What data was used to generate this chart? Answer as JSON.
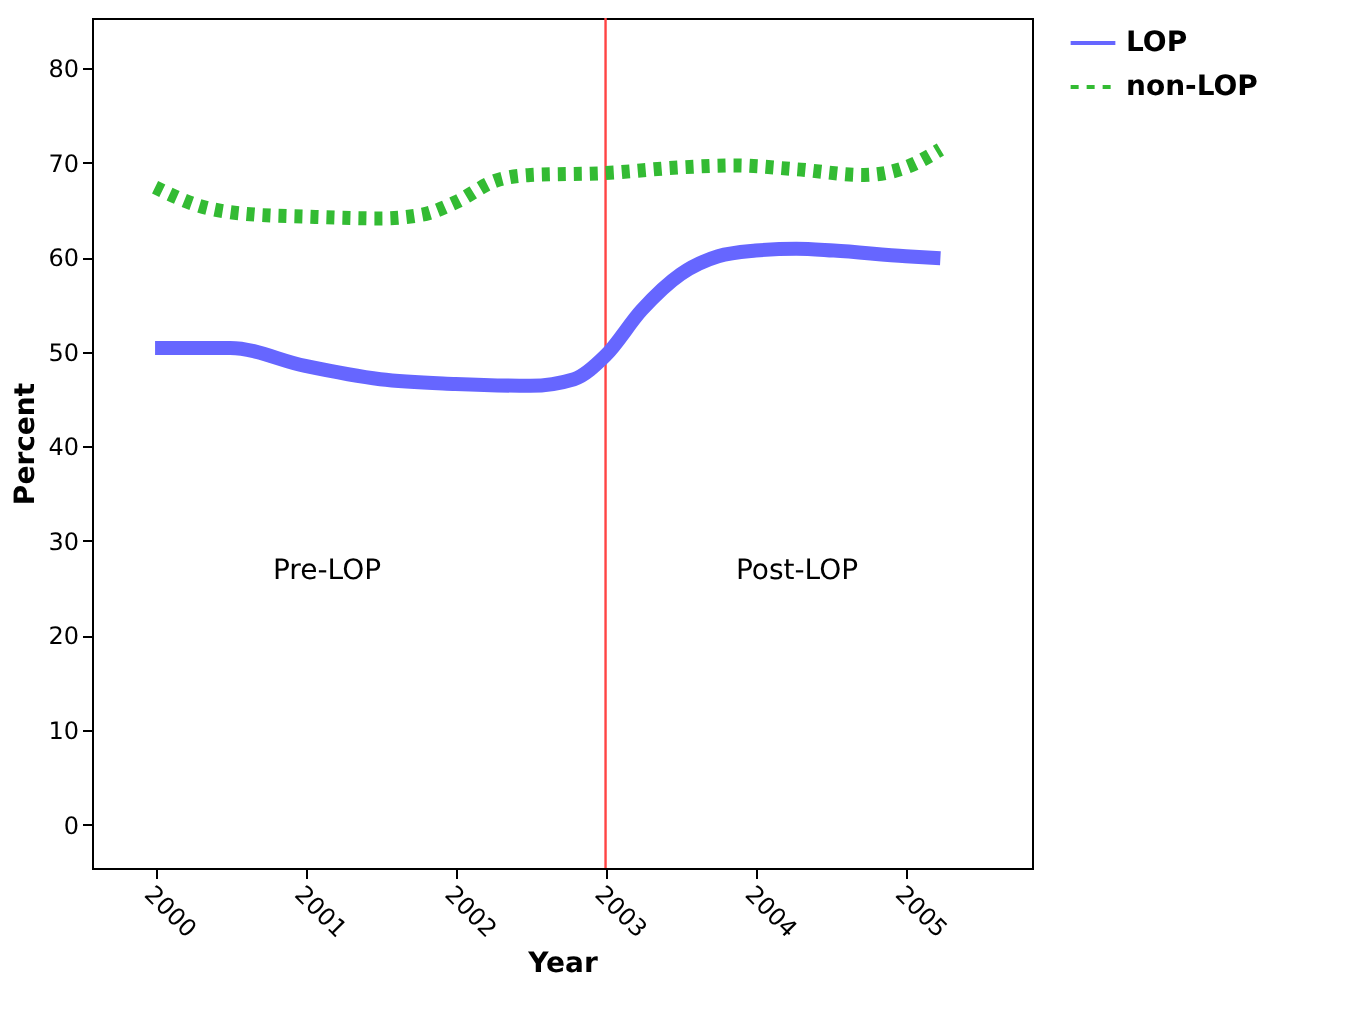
{
  "chart_data": {
    "type": "line",
    "xlabel": "Year",
    "ylabel": "Percent",
    "xlim": [
      1999.58,
      2005.84
    ],
    "xticks": [
      2000,
      2001,
      2002,
      2003,
      2004,
      2005
    ],
    "ylim": [
      -4.6,
      85.3
    ],
    "yticks": [
      0,
      10,
      20,
      30,
      40,
      50,
      60,
      70,
      80
    ],
    "grid": false,
    "legend": "top right",
    "marker": "none",
    "series": [
      {
        "name": "LOP",
        "color": "#6666ff",
        "line_style": "solid",
        "x": [
          2000,
          2000.5,
          2001,
          2001.5,
          2002,
          2002.5,
          2002.79,
          2003.0,
          2003.24,
          2003.5,
          2003.75,
          2004.0,
          2004.27,
          2004.52,
          2005,
          2005.23
        ],
        "values": [
          50.4,
          50.4,
          48.5,
          47.1,
          46.6,
          46.4,
          47.1,
          49.6,
          54.4,
          58.2,
          60.1,
          60.7,
          60.9,
          60.7,
          60.1,
          59.9
        ]
      },
      {
        "name": "non-LOP",
        "color": "#33bb33",
        "line_style": "dotted",
        "x": [
          2000,
          2000.28,
          2000.67,
          2001,
          2001.5,
          2001.78,
          2002,
          2002.27,
          2002.5,
          2003.0,
          2003.5,
          2003.86,
          2004.27,
          2004.72,
          2005,
          2005.23
        ],
        "values": [
          67.4,
          65.5,
          64.5,
          64.3,
          64.1,
          64.5,
          65.8,
          68.1,
          68.7,
          68.9,
          69.5,
          69.7,
          69.3,
          68.7,
          69.5,
          71.4
        ]
      }
    ],
    "ref_lines": [
      {
        "axis": "x",
        "value": 2003,
        "color": "#ff4444"
      }
    ],
    "annotations": [
      "Pre-LOP",
      "Post-LOP"
    ]
  }
}
